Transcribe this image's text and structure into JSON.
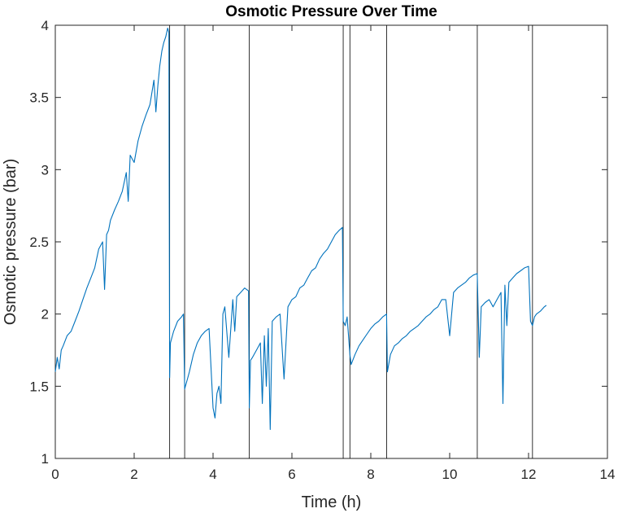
{
  "chart_data": {
    "type": "line",
    "title": "Osmotic Pressure Over Time",
    "xlabel": "Time (h)",
    "ylabel": "Osmotic pressure (bar)",
    "xlim": [
      0,
      14
    ],
    "ylim": [
      1,
      4
    ],
    "xticks": [
      0,
      2,
      4,
      6,
      8,
      10,
      12,
      14
    ],
    "yticks": [
      1,
      1.5,
      2,
      2.5,
      3,
      3.5,
      4
    ],
    "xtick_labels": [
      "0",
      "2",
      "4",
      "6",
      "8",
      "10",
      "12",
      "14"
    ],
    "ytick_labels": [
      "1",
      "1.5",
      "2",
      "2.5",
      "3",
      "3.5",
      "4"
    ],
    "grid": false,
    "series_color": "#0072BD",
    "vline_color": "#000000",
    "vlines": [
      2.9,
      3.28,
      4.92,
      7.3,
      7.47,
      8.4,
      10.7,
      12.1
    ],
    "series": [
      {
        "x": [
          0.0,
          0.05,
          0.1,
          0.15,
          0.2,
          0.3,
          0.4,
          0.5,
          0.6,
          0.7,
          0.8,
          0.9,
          1.0,
          1.1,
          1.2,
          1.25,
          1.3,
          1.35,
          1.4,
          1.5,
          1.6,
          1.7,
          1.8,
          1.85,
          1.9,
          2.0,
          2.1,
          2.2,
          2.3,
          2.4,
          2.5,
          2.55,
          2.6,
          2.65,
          2.7,
          2.75,
          2.8,
          2.85,
          2.88,
          2.9,
          2.92,
          3.0,
          3.1,
          3.2,
          3.25,
          3.28,
          3.3,
          3.35,
          3.4,
          3.5,
          3.6,
          3.7,
          3.8,
          3.9,
          4.0,
          4.05,
          4.1,
          4.15,
          4.2,
          4.25,
          4.3,
          4.4,
          4.5,
          4.55,
          4.6,
          4.7,
          4.8,
          4.9,
          4.92,
          4.95,
          5.0,
          5.1,
          5.2,
          5.25,
          5.3,
          5.35,
          5.4,
          5.45,
          5.5,
          5.6,
          5.7,
          5.8,
          5.9,
          6.0,
          6.1,
          6.2,
          6.3,
          6.4,
          6.5,
          6.6,
          6.7,
          6.8,
          6.9,
          7.0,
          7.1,
          7.2,
          7.28,
          7.3,
          7.35,
          7.4,
          7.47,
          7.5,
          7.6,
          7.7,
          7.8,
          7.9,
          8.0,
          8.1,
          8.2,
          8.3,
          8.4,
          8.42,
          8.5,
          8.6,
          8.7,
          8.8,
          8.9,
          9.0,
          9.1,
          9.2,
          9.3,
          9.4,
          9.5,
          9.6,
          9.7,
          9.8,
          9.9,
          10.0,
          10.1,
          10.2,
          10.3,
          10.4,
          10.5,
          10.6,
          10.7,
          10.75,
          10.8,
          10.9,
          11.0,
          11.1,
          11.2,
          11.3,
          11.35,
          11.4,
          11.45,
          11.5,
          11.6,
          11.7,
          11.8,
          11.9,
          12.0,
          12.05,
          12.1,
          12.15,
          12.2,
          12.3,
          12.4,
          12.45
        ],
        "y": [
          1.6,
          1.7,
          1.62,
          1.75,
          1.78,
          1.85,
          1.88,
          1.95,
          2.02,
          2.1,
          2.18,
          2.25,
          2.32,
          2.45,
          2.5,
          2.17,
          2.55,
          2.58,
          2.65,
          2.72,
          2.78,
          2.85,
          2.98,
          2.78,
          3.1,
          3.05,
          3.2,
          3.3,
          3.38,
          3.45,
          3.62,
          3.4,
          3.58,
          3.72,
          3.82,
          3.88,
          3.92,
          3.98,
          3.95,
          1.56,
          1.8,
          1.88,
          1.95,
          1.98,
          2.0,
          1.48,
          1.5,
          1.55,
          1.6,
          1.72,
          1.8,
          1.85,
          1.88,
          1.9,
          1.35,
          1.28,
          1.45,
          1.5,
          1.38,
          2.0,
          2.05,
          1.7,
          2.1,
          1.88,
          2.12,
          2.15,
          2.18,
          2.16,
          1.35,
          1.68,
          1.7,
          1.75,
          1.8,
          1.38,
          1.85,
          1.5,
          1.9,
          1.2,
          1.95,
          1.98,
          2.0,
          1.55,
          2.05,
          2.1,
          2.12,
          2.18,
          2.2,
          2.25,
          2.3,
          2.32,
          2.38,
          2.42,
          2.45,
          2.5,
          2.55,
          2.58,
          2.6,
          1.95,
          1.92,
          1.98,
          1.72,
          1.65,
          1.72,
          1.78,
          1.82,
          1.86,
          1.9,
          1.93,
          1.95,
          1.98,
          2.0,
          1.6,
          1.72,
          1.78,
          1.8,
          1.83,
          1.85,
          1.88,
          1.9,
          1.92,
          1.95,
          1.98,
          2.0,
          2.03,
          2.05,
          2.1,
          2.1,
          1.85,
          2.15,
          2.18,
          2.2,
          2.22,
          2.25,
          2.27,
          2.28,
          1.7,
          2.05,
          2.08,
          2.1,
          2.05,
          2.1,
          2.15,
          1.38,
          2.2,
          1.92,
          2.22,
          2.25,
          2.28,
          2.3,
          2.32,
          2.33,
          1.95,
          1.92,
          1.98,
          2.0,
          2.02,
          2.05,
          2.06
        ]
      }
    ]
  }
}
